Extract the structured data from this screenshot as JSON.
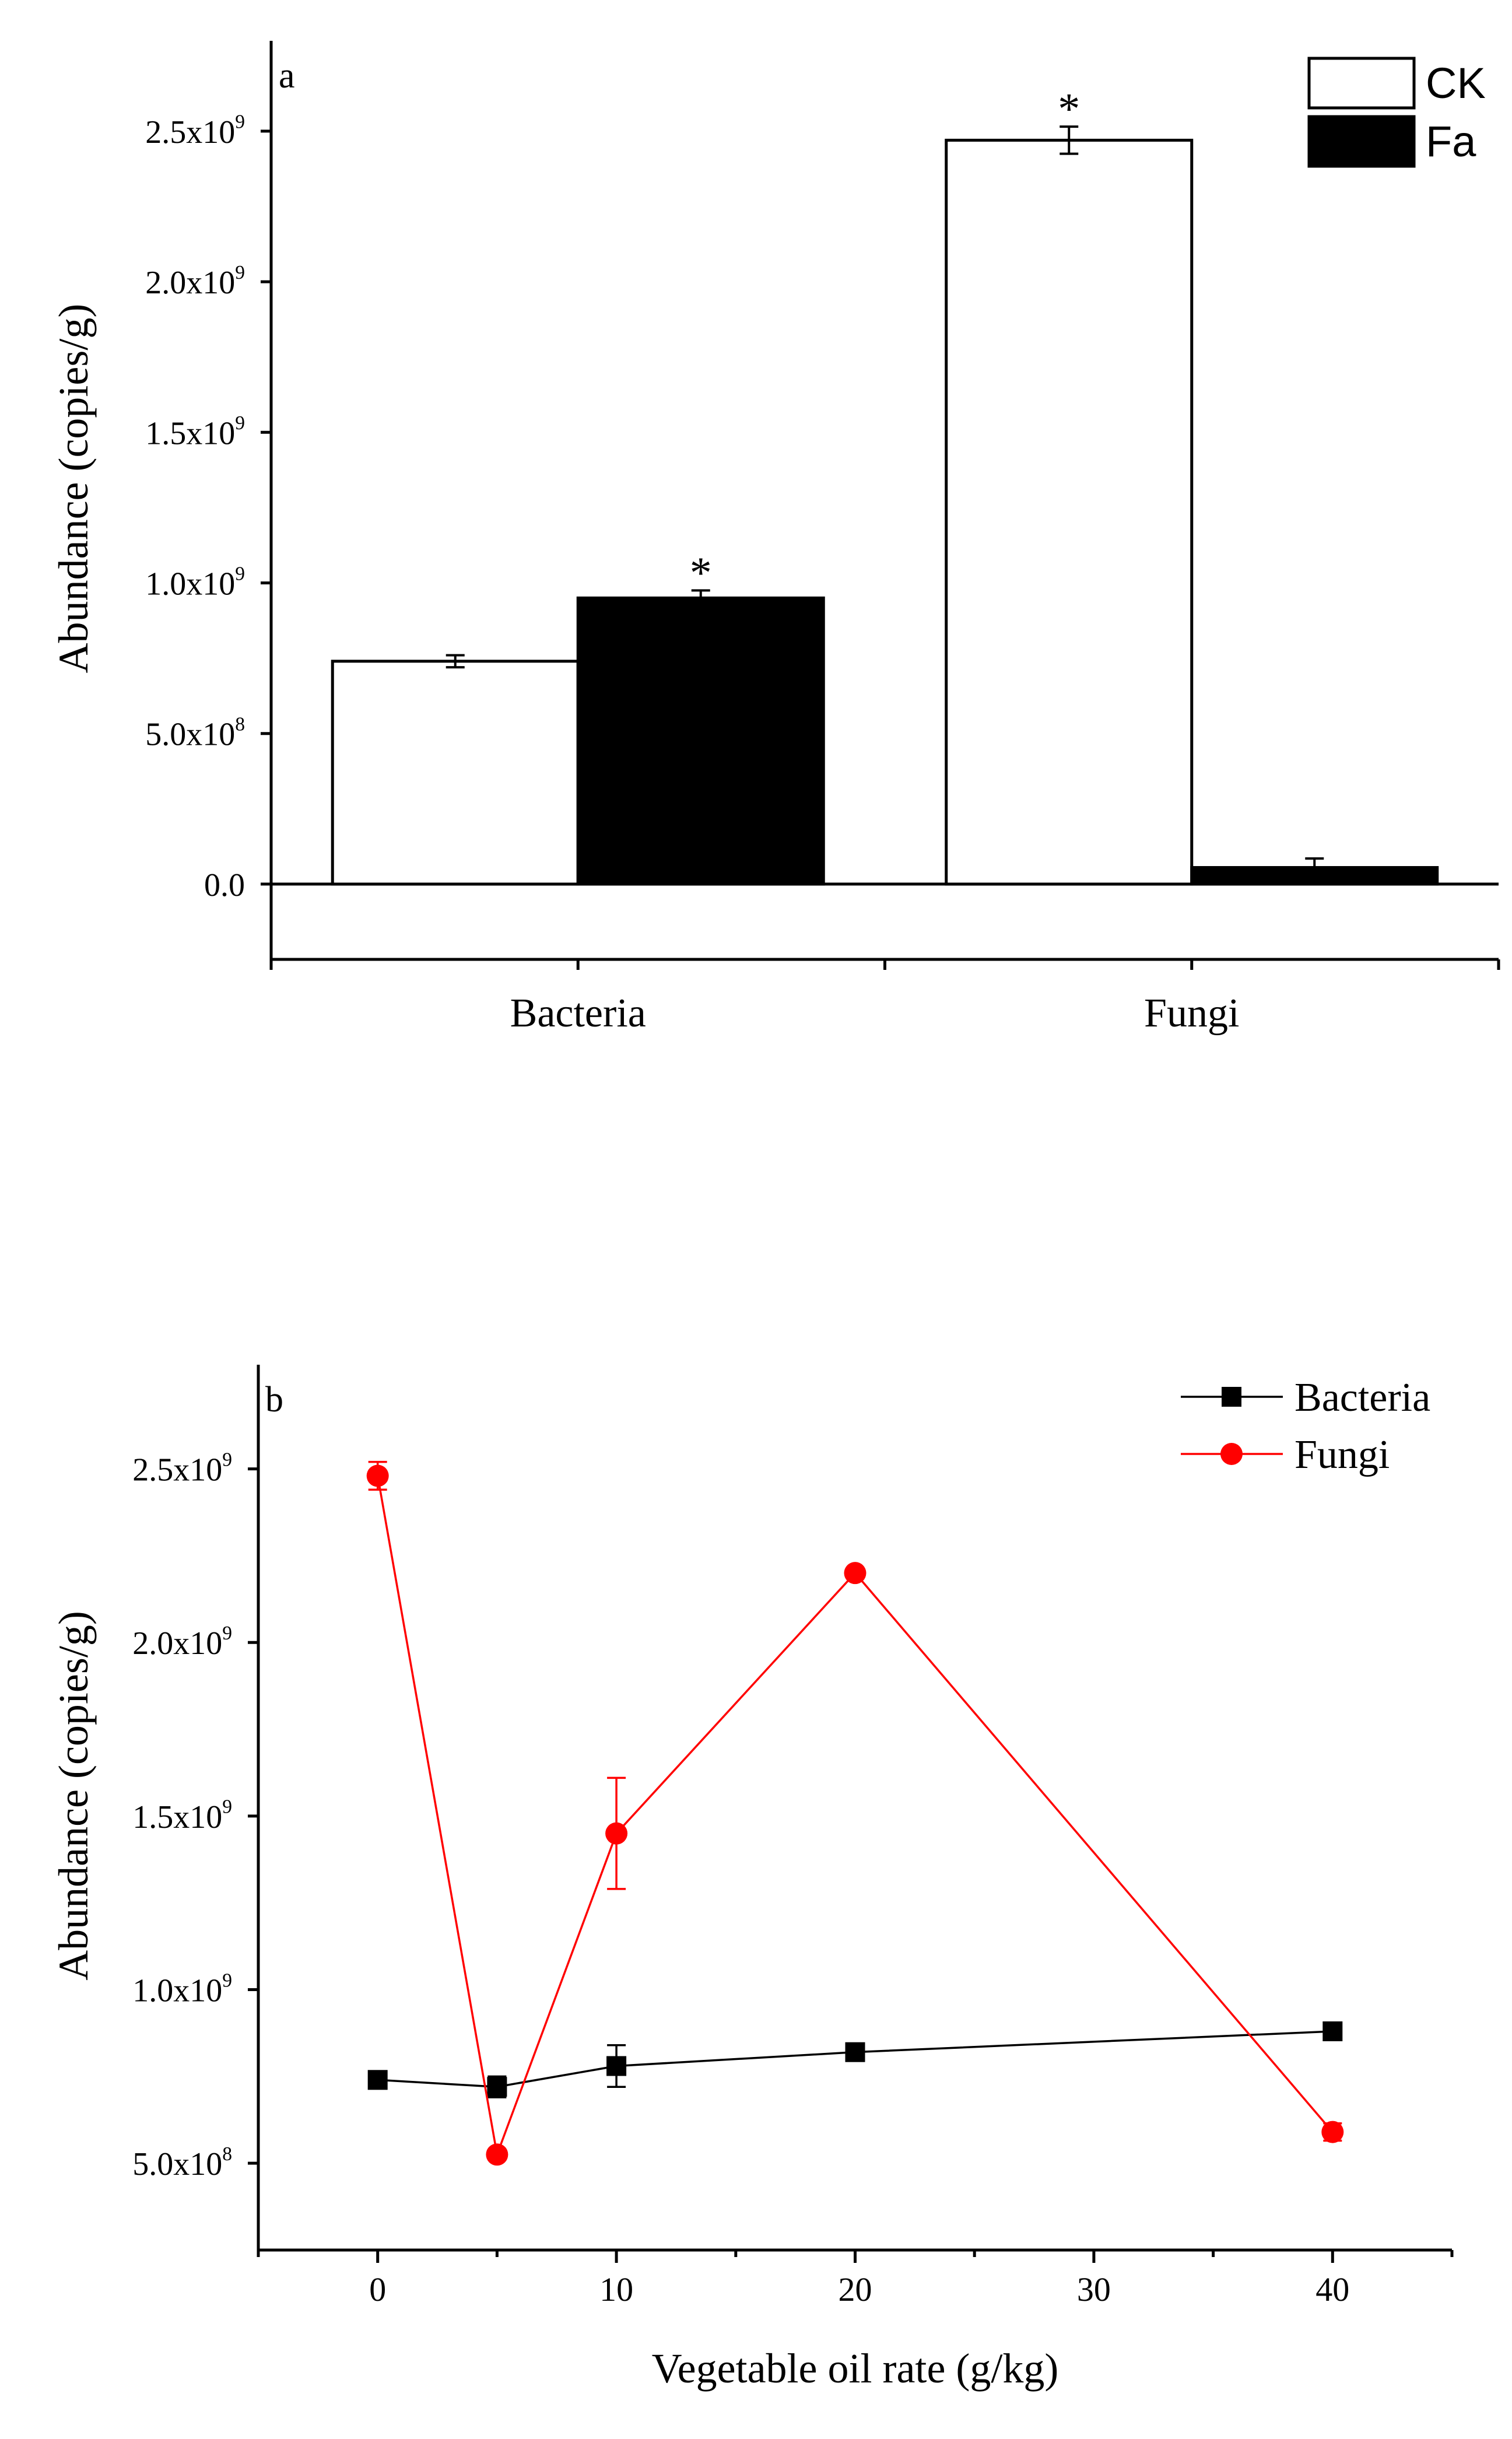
{
  "chart_data": [
    {
      "type": "bar",
      "panel_label": "a",
      "ylabel": "Abundance (copies/g)",
      "xlabel": "",
      "categories": [
        "Bacteria",
        "Fungi"
      ],
      "ylim": [
        -250000000,
        2800000000
      ],
      "yticks": [
        {
          "value": 0,
          "mant": "0.0",
          "exp": ""
        },
        {
          "value": 500000000,
          "mant": "5.0x10",
          "exp": "8"
        },
        {
          "value": 1000000000,
          "mant": "1.0x10",
          "exp": "9"
        },
        {
          "value": 1500000000,
          "mant": "1.5x10",
          "exp": "9"
        },
        {
          "value": 2000000000,
          "mant": "2.0x10",
          "exp": "9"
        },
        {
          "value": 2500000000,
          "mant": "2.5x10",
          "exp": "9"
        }
      ],
      "series": [
        {
          "name": "CK",
          "color": "#ffffff",
          "values": [
            740000000,
            2470000000
          ],
          "errors": [
            20000000,
            45000000
          ]
        },
        {
          "name": "Fa",
          "color": "#000000",
          "values": [
            950000000,
            55000000
          ],
          "errors": [
            25000000,
            30000000
          ]
        }
      ],
      "annotations": [
        {
          "text": "*",
          "category": "Bacteria",
          "series": "Fa"
        },
        {
          "text": "*",
          "category": "Fungi",
          "series": "CK"
        }
      ],
      "legend": "top-right",
      "grid": false
    },
    {
      "type": "line",
      "panel_label": "b",
      "xlabel": "Vegetable oil rate (g/kg)",
      "ylabel": "Abundance (copies/g)",
      "xlim": [
        -5,
        45
      ],
      "ylim": [
        250000000,
        2800000000
      ],
      "xticks": [
        0,
        10,
        20,
        30,
        40
      ],
      "yticks": [
        {
          "value": 500000000,
          "mant": "5.0x10",
          "exp": "8"
        },
        {
          "value": 1000000000,
          "mant": "1.0x10",
          "exp": "9"
        },
        {
          "value": 1500000000,
          "mant": "1.5x10",
          "exp": "9"
        },
        {
          "value": 2000000000,
          "mant": "2.0x10",
          "exp": "9"
        },
        {
          "value": 2500000000,
          "mant": "2.5x10",
          "exp": "9"
        }
      ],
      "x": [
        0,
        5,
        10,
        20,
        40
      ],
      "series": [
        {
          "name": "Bacteria",
          "color": "#000000",
          "marker": "square",
          "values": [
            740000000,
            720000000,
            780000000,
            820000000,
            880000000
          ],
          "errors": [
            10000000,
            30000000,
            60000000,
            10000000,
            10000000
          ]
        },
        {
          "name": "Fungi",
          "color": "#ff0000",
          "marker": "circle",
          "values": [
            2480000000,
            525000000,
            1450000000,
            2200000000,
            590000000
          ],
          "errors": [
            40000000,
            10000000,
            160000000,
            10000000,
            25000000
          ]
        }
      ],
      "legend": "top-right",
      "grid": false
    }
  ]
}
